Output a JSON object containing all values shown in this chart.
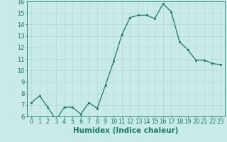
{
  "x": [
    0,
    1,
    2,
    3,
    4,
    5,
    6,
    7,
    8,
    9,
    10,
    11,
    12,
    13,
    14,
    15,
    16,
    17,
    18,
    19,
    20,
    21,
    22,
    23
  ],
  "y": [
    7.2,
    7.8,
    6.8,
    5.7,
    6.8,
    6.8,
    6.2,
    7.2,
    6.7,
    8.7,
    10.8,
    13.1,
    14.6,
    14.8,
    14.8,
    14.5,
    15.8,
    15.1,
    12.5,
    11.8,
    10.9,
    10.9,
    10.6,
    10.5
  ],
  "xlabel": "Humidex (Indice chaleur)",
  "ylim": [
    6,
    16
  ],
  "xlim": [
    -0.5,
    23.5
  ],
  "yticks": [
    6,
    7,
    8,
    9,
    10,
    11,
    12,
    13,
    14,
    15,
    16
  ],
  "xticks": [
    0,
    1,
    2,
    3,
    4,
    5,
    6,
    7,
    8,
    9,
    10,
    11,
    12,
    13,
    14,
    15,
    16,
    17,
    18,
    19,
    20,
    21,
    22,
    23
  ],
  "xtick_labels": [
    "0",
    "1",
    "2",
    "3",
    "4",
    "5",
    "6",
    "7",
    "8",
    "9",
    "10",
    "11",
    "12",
    "13",
    "14",
    "15",
    "16",
    "17",
    "18",
    "19",
    "20",
    "21",
    "22",
    "23"
  ],
  "ytick_labels": [
    "6",
    "7",
    "8",
    "9",
    "10",
    "11",
    "12",
    "13",
    "14",
    "15",
    "16"
  ],
  "line_color": "#1a7a5e",
  "marker_color": "#1a7a5e",
  "bg_color": "#c8ebe8",
  "grid_color": "#b0d8d4",
  "axis_color": "#1a7a5e",
  "label_color": "#1a7a5e",
  "tick_color": "#1a7a5e",
  "xlabel_fontsize": 7.5,
  "tick_fontsize": 6.0
}
